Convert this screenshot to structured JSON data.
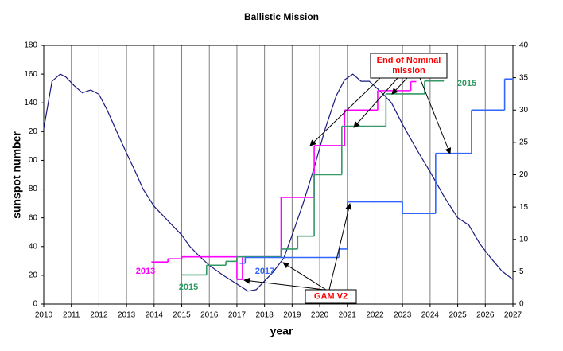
{
  "chart_data": {
    "type": "line",
    "title": "Ballistic Mission",
    "x_label": "year",
    "y_label": "sunspot number",
    "xlim": [
      2010,
      2027
    ],
    "xticks": [
      2010,
      2011,
      2012,
      2013,
      2014,
      2015,
      2016,
      2017,
      2018,
      2019,
      2020,
      2021,
      2022,
      2023,
      2024,
      2025,
      2026,
      2027
    ],
    "ylim": [
      0,
      180
    ],
    "yticks": [
      0,
      20,
      40,
      60,
      80,
      {
        "value": 100,
        "label": "00"
      },
      {
        "value": 120,
        "label": "20"
      },
      140,
      160,
      180
    ],
    "y2lim": [
      0,
      40
    ],
    "y2ticks": [
      0,
      5,
      10,
      15,
      20,
      25,
      30,
      35,
      40
    ],
    "grid": "x",
    "sunspot": {
      "color": "#1a1a80",
      "x": [
        2010.0,
        2010.3,
        2010.6,
        2010.8,
        2011.1,
        2011.4,
        2011.7,
        2012.0,
        2012.3,
        2012.6,
        2013.0,
        2013.3,
        2013.6,
        2014.0,
        2014.3,
        2014.6,
        2015.0,
        2015.3,
        2015.6,
        2016.0,
        2016.5,
        2017.0,
        2017.4,
        2017.7,
        2018.0,
        2018.3,
        2018.7,
        2019.0,
        2019.4,
        2019.8,
        2020.2,
        2020.6,
        2020.9,
        2021.2,
        2021.5,
        2021.8,
        2022.2,
        2022.6,
        2023.0,
        2023.5,
        2024.0,
        2024.5,
        2025.0,
        2025.4,
        2025.8,
        2026.2,
        2026.6,
        2027.0
      ],
      "values": [
        122,
        155,
        160,
        158,
        152,
        147,
        149,
        146,
        135,
        122,
        105,
        93,
        80,
        68,
        62,
        56,
        48,
        40,
        34,
        27,
        20,
        14,
        9,
        10,
        16,
        22,
        32,
        48,
        70,
        95,
        122,
        145,
        156,
        160,
        155,
        155,
        148,
        140,
        125,
        108,
        92,
        75,
        60,
        55,
        42,
        32,
        23,
        17
      ]
    },
    "series": [
      {
        "name": "2013",
        "color": "#ff00ff",
        "axis": "y2",
        "bins": [
          2013.9,
          2014.5,
          2015.0,
          2017.0,
          2017.2,
          2018.6,
          2019.8,
          2020.9,
          2022.1,
          2023.3,
          2023.5
        ],
        "values": [
          6.5,
          7.0,
          7.3,
          3.8,
          7.3,
          16.5,
          24.5,
          30.0,
          33.0,
          34.4
        ]
      },
      {
        "name": "2015",
        "color": "#339966",
        "axis": "y2",
        "bins": [
          2015.0,
          2015.9,
          2016.6,
          2017.0,
          2018.6,
          2019.2,
          2019.8,
          2020.8,
          2022.4,
          2023.8,
          2024.5
        ],
        "values": [
          4.5,
          6.0,
          6.6,
          7.3,
          8.5,
          10.5,
          20.0,
          27.5,
          32.5,
          34.5
        ]
      },
      {
        "name": "2017",
        "color": "#3366ff",
        "axis": "y2",
        "bins": [
          2017.1,
          2017.3,
          2020.7,
          2021.0,
          2023.0,
          2024.2,
          2025.5,
          2026.7,
          2027.0
        ],
        "values": [
          6.3,
          7.2,
          8.5,
          15.8,
          14.0,
          23.3,
          30.0,
          34.8
        ]
      }
    ],
    "annotations": [
      {
        "lines": [
          "End of Nominal",
          "mission"
        ]
      },
      {
        "lines": [
          "GAM V2"
        ]
      }
    ]
  }
}
